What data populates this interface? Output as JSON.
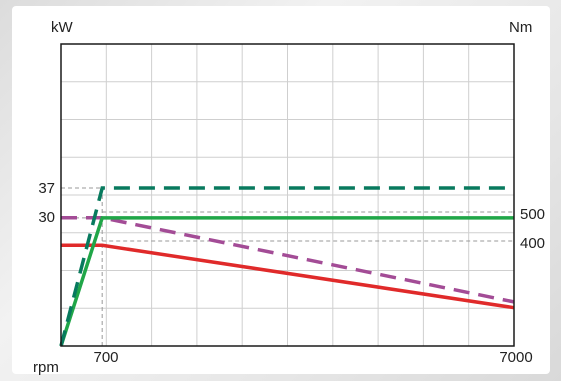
{
  "chart_data": {
    "type": "line",
    "left_unit": "kW",
    "right_unit": "Nm",
    "x_unit": "rpm",
    "x_ticks": [
      "700",
      "7000"
    ],
    "left_ticks": [
      "37",
      "30"
    ],
    "right_ticks": [
      "500",
      "400"
    ],
    "xlim": [
      0,
      7700
    ],
    "grid": true,
    "series": [
      {
        "axis": "left",
        "style": "dashed",
        "color": "#087a5e",
        "x": [
          0,
          700,
          7700
        ],
        "y": [
          0,
          37,
          37
        ]
      },
      {
        "axis": "left",
        "style": "solid",
        "color": "#20a648",
        "x": [
          0,
          700,
          7700
        ],
        "y": [
          0,
          30,
          30
        ]
      },
      {
        "axis": "right",
        "style": "dashed",
        "color": "#a34c96",
        "x": [
          0,
          700,
          7700
        ],
        "y": [
          480,
          480,
          190
        ]
      },
      {
        "axis": "right",
        "style": "solid",
        "color": "#e02a2a",
        "x": [
          0,
          700,
          7700
        ],
        "y": [
          385,
          385,
          170
        ]
      }
    ]
  }
}
